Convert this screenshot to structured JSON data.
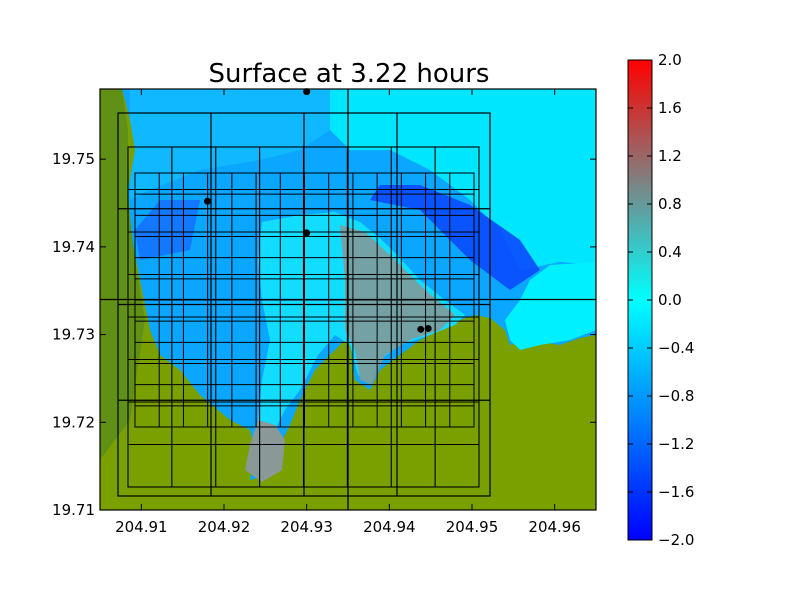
{
  "chart_data": {
    "type": "heatmap",
    "title": "Surface at 3.22 hours",
    "xlabel": "",
    "ylabel": "",
    "xlim": [
      204.905,
      204.965
    ],
    "ylim": [
      19.71,
      19.758
    ],
    "x_ticks": [
      204.91,
      204.92,
      204.93,
      204.94,
      204.95,
      204.96
    ],
    "x_tick_labels": [
      "204.91",
      "204.92",
      "204.93",
      "204.94",
      "204.95",
      "204.96"
    ],
    "y_ticks": [
      19.71,
      19.72,
      19.73,
      19.74,
      19.75
    ],
    "y_tick_labels": [
      "19.71",
      "19.72",
      "19.73",
      "19.74",
      "19.75"
    ],
    "colorbar": {
      "range": [
        -2.0,
        2.0
      ],
      "ticks": [
        2.0,
        1.6,
        1.2,
        0.8,
        0.4,
        0.0,
        -0.4,
        -0.8,
        -1.2,
        -1.6,
        -2.0
      ],
      "tick_labels": [
        "2.0",
        "1.6",
        "1.2",
        "0.8",
        "0.4",
        "0.0",
        "−0.4",
        "−0.8",
        "−1.2",
        "−1.6",
        "−2.0"
      ],
      "colors": [
        "#0000ff",
        "#00ffff",
        "#808080",
        "#ff0000"
      ]
    },
    "land_color": "#7aa000",
    "gauges": [
      {
        "x": 204.93,
        "y": 19.7577
      },
      {
        "x": 204.918,
        "y": 19.7452
      },
      {
        "x": 204.93,
        "y": 19.7416
      },
      {
        "x": 204.9438,
        "y": 19.7306
      },
      {
        "x": 204.9447,
        "y": 19.7307
      }
    ],
    "crosshair": {
      "x": 204.935,
      "y": 19.734
    }
  }
}
